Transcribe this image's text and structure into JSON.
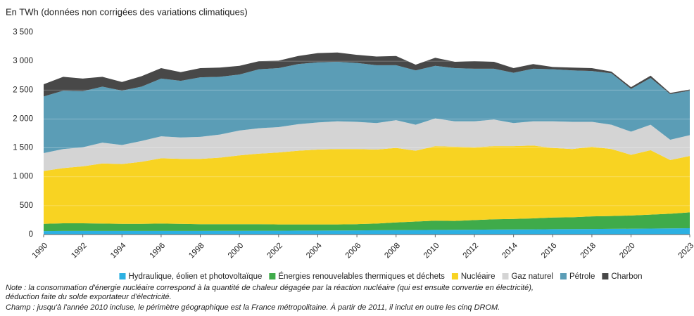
{
  "chart_data": {
    "type": "stacked_area",
    "title": "En TWh (données non corrigées des variations climatiques)",
    "x": [
      1990,
      1991,
      1992,
      1993,
      1994,
      1995,
      1996,
      1997,
      1998,
      1999,
      2000,
      2001,
      2002,
      2003,
      2004,
      2005,
      2006,
      2007,
      2008,
      2009,
      2010,
      2011,
      2012,
      2013,
      2014,
      2015,
      2016,
      2017,
      2018,
      2019,
      2020,
      2021,
      2022,
      2023
    ],
    "xlim": [
      1990,
      2023
    ],
    "xticks": [
      1990,
      1992,
      1994,
      1996,
      1998,
      2000,
      2002,
      2004,
      2006,
      2008,
      2010,
      2012,
      2014,
      2016,
      2018,
      2020,
      2023
    ],
    "ylim": [
      0,
      3500
    ],
    "yticks": [
      0,
      500,
      {
        "value": 1000,
        "label": "1 000"
      },
      {
        "value": 1500,
        "label": "1 500"
      },
      {
        "value": 2000,
        "label": "2 000"
      },
      {
        "value": 2500,
        "label": "2 500"
      },
      {
        "value": 3000,
        "label": "3 000"
      },
      {
        "value": 3500,
        "label": "3 500"
      }
    ],
    "grid": true,
    "series": [
      {
        "name": "Hydraulique, éolien et photovoltaïque",
        "color": "#2cb0e2",
        "values": [
          60,
          62,
          62,
          63,
          62,
          62,
          63,
          63,
          63,
          64,
          64,
          66,
          66,
          68,
          68,
          70,
          72,
          74,
          76,
          78,
          80,
          82,
          84,
          86,
          88,
          90,
          92,
          94,
          96,
          98,
          100,
          104,
          106,
          110
        ]
      },
      {
        "name": "Énergies renouvelables thermiques et déchets",
        "color": "#3fab4a",
        "values": [
          125,
          133,
          133,
          127,
          123,
          123,
          127,
          122,
          117,
          116,
          116,
          114,
          109,
          107,
          107,
          105,
          108,
          116,
          134,
          147,
          160,
          153,
          166,
          179,
          182,
          190,
          203,
          206,
          219,
          222,
          230,
          241,
          254,
          275
        ]
      },
      {
        "name": "Nucléaire",
        "color": "#f8d322",
        "values": [
          915,
          955,
          985,
          1040,
          1035,
          1075,
          1130,
          1125,
          1130,
          1150,
          1190,
          1220,
          1245,
          1275,
          1295,
          1305,
          1300,
          1280,
          1290,
          1225,
          1290,
          1285,
          1260,
          1265,
          1260,
          1260,
          1205,
          1180,
          1205,
          1160,
          1050,
          1115,
          930,
          975
        ]
      },
      {
        "name": "Gaz naturel",
        "color": "#d4d4d4",
        "values": [
          310,
          330,
          330,
          360,
          330,
          360,
          380,
          370,
          380,
          400,
          430,
          440,
          440,
          460,
          470,
          480,
          470,
          460,
          480,
          450,
          480,
          440,
          450,
          460,
          400,
          420,
          460,
          470,
          430,
          420,
          400,
          440,
          350,
          360
        ]
      },
      {
        "name": "Pétrole",
        "color": "#5b9db6",
        "values": [
          980,
          1010,
          970,
          970,
          940,
          940,
          1000,
          980,
          1030,
          1000,
          970,
          1020,
          1020,
          1040,
          1040,
          1030,
          1020,
          1000,
          950,
          940,
          910,
          920,
          910,
          880,
          870,
          910,
          900,
          890,
          880,
          890,
          740,
          810,
          790,
          770
        ]
      },
      {
        "name": "Charbon",
        "color": "#484848",
        "values": [
          210,
          240,
          220,
          170,
          150,
          180,
          180,
          150,
          160,
          160,
          150,
          140,
          130,
          140,
          160,
          160,
          140,
          150,
          160,
          100,
          140,
          110,
          130,
          120,
          80,
          80,
          40,
          50,
          50,
          30,
          30,
          40,
          20,
          20
        ]
      }
    ],
    "notes": [
      "Note : la consommation d'énergie nucléaire correspond à la quantité de chaleur dégagée par la réaction nucléaire (qui est ensuite convertie en électricité),",
      "déduction faite du solde exportateur d'électricité.",
      "Champ : jusqu'à l'année 2010 incluse, le périmètre géographique est la France métropolitaine. À partir de 2011, il inclut en outre les cinq DROM."
    ]
  }
}
